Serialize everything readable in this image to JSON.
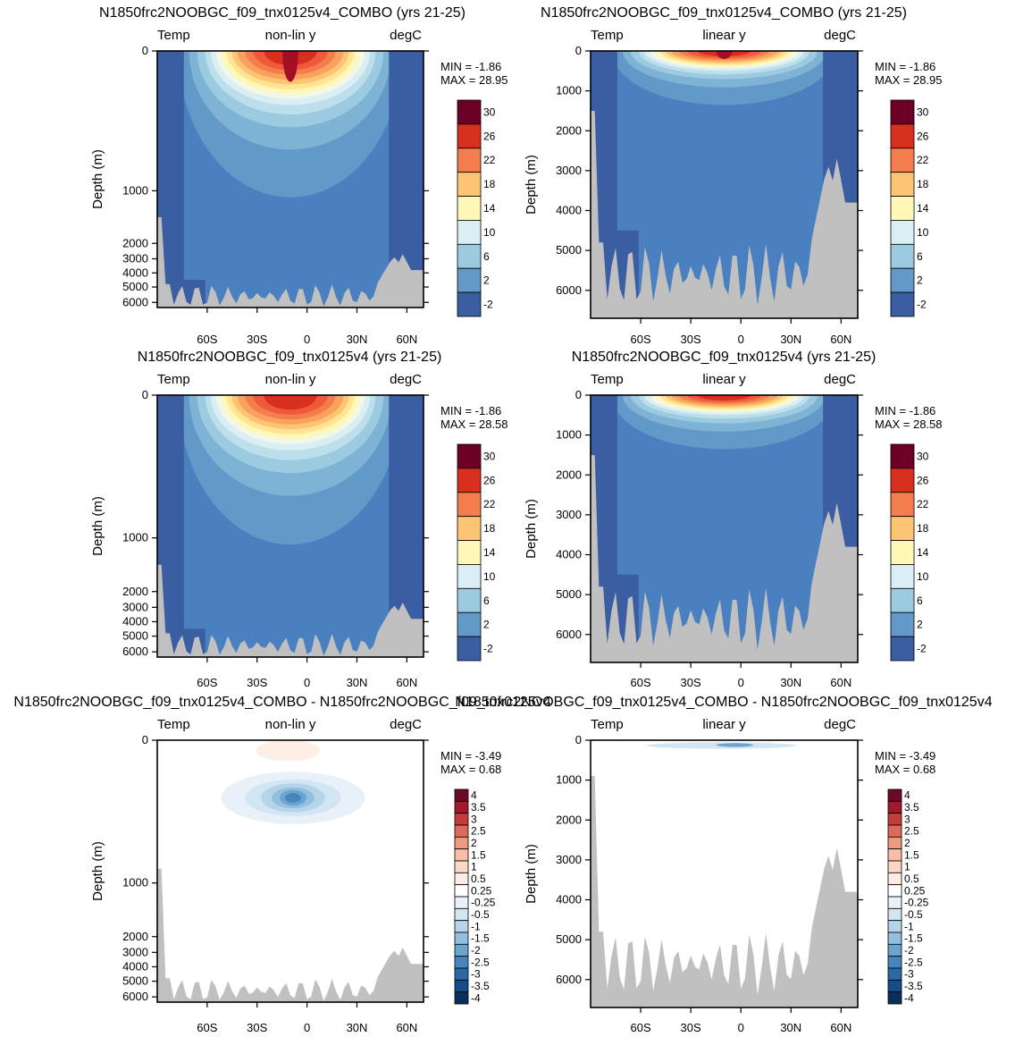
{
  "figure": {
    "panels": [
      {
        "title": "N1850frc2NOOBGC_f09_tnx0125v4_COMBO (yrs 21-25)",
        "left_label": "Temp",
        "center_label": "non-lin y",
        "right_label": "degC",
        "ylabel": "Depth (m)",
        "min_text": "MIN =  -1.86",
        "max_text": "MAX =  28.95"
      },
      {
        "title": "N1850frc2NOOBGC_f09_tnx0125v4_COMBO (yrs 21-25)",
        "left_label": "Temp",
        "center_label": "linear y",
        "right_label": "degC",
        "ylabel": "Depth (m)",
        "min_text": "MIN =  -1.86",
        "max_text": "MAX =  28.95"
      },
      {
        "title": "N1850frc2NOOBGC_f09_tnx0125v4 (yrs 21-25)",
        "left_label": "Temp",
        "center_label": "non-lin y",
        "right_label": "degC",
        "ylabel": "Depth (m)",
        "min_text": "MIN =  -1.86",
        "max_text": "MAX =  28.58"
      },
      {
        "title": "N1850frc2NOOBGC_f09_tnx0125v4 (yrs 21-25)",
        "left_label": "Temp",
        "center_label": "linear y",
        "right_label": "degC",
        "ylabel": "Depth (m)",
        "min_text": "MIN =  -1.86",
        "max_text": "MAX =  28.58"
      },
      {
        "title": "N1850frc2NOOBGC_f09_tnx0125v4_COMBO - N1850frc2NOOBGC_f09_tnx0125v4",
        "left_label": "Temp",
        "center_label": "non-lin y",
        "right_label": "degC",
        "ylabel": "Depth (m)",
        "min_text": "MIN =  -3.49",
        "max_text": "MAX =   0.68"
      },
      {
        "title": "N1850frc2NOOBGC_f09_tnx0125v4_COMBO - N1850frc2NOOBGC_f09_tnx0125v4",
        "left_label": "Temp",
        "center_label": "linear y",
        "right_label": "degC",
        "ylabel": "Depth (m)",
        "min_text": "MIN =  -3.49",
        "max_text": "MAX =   0.68"
      }
    ]
  },
  "chart_data": [
    {
      "type": "heatmap",
      "variable": "Temp",
      "units": "degC",
      "y_scale": "non-linear",
      "xlabel": "",
      "ylabel": "Depth (m)",
      "xlim": [
        -80,
        80
      ],
      "ylim": [
        6500,
        0
      ],
      "x_ticks": [
        "60S",
        "30S",
        "0",
        "30N",
        "60N"
      ],
      "y_ticks": [
        "0",
        "1000",
        "2000",
        "3000",
        "4000",
        "5000",
        "6000"
      ],
      "colorbar_levels": [
        "30",
        "26",
        "22",
        "18",
        "14",
        "10",
        "6",
        "2",
        "-2"
      ],
      "min": -1.86,
      "max": 28.95
    },
    {
      "type": "heatmap",
      "variable": "Temp",
      "units": "degC",
      "y_scale": "linear",
      "xlabel": "",
      "ylabel": "Depth (m)",
      "xlim": [
        -80,
        80
      ],
      "ylim": [
        6700,
        0
      ],
      "x_ticks": [
        "60S",
        "30S",
        "0",
        "30N",
        "60N"
      ],
      "y_ticks": [
        "0",
        "1000",
        "2000",
        "3000",
        "4000",
        "5000",
        "6000"
      ],
      "colorbar_levels": [
        "30",
        "26",
        "22",
        "18",
        "14",
        "10",
        "6",
        "2",
        "-2"
      ],
      "min": -1.86,
      "max": 28.95
    },
    {
      "type": "heatmap",
      "variable": "Temp",
      "units": "degC",
      "y_scale": "non-linear",
      "xlabel": "",
      "ylabel": "Depth (m)",
      "xlim": [
        -80,
        80
      ],
      "ylim": [
        6500,
        0
      ],
      "x_ticks": [
        "60S",
        "30S",
        "0",
        "30N",
        "60N"
      ],
      "y_ticks": [
        "0",
        "1000",
        "2000",
        "3000",
        "4000",
        "5000",
        "6000"
      ],
      "colorbar_levels": [
        "30",
        "26",
        "22",
        "18",
        "14",
        "10",
        "6",
        "2",
        "-2"
      ],
      "min": -1.86,
      "max": 28.58
    },
    {
      "type": "heatmap",
      "variable": "Temp",
      "units": "degC",
      "y_scale": "linear",
      "xlabel": "",
      "ylabel": "Depth (m)",
      "xlim": [
        -80,
        80
      ],
      "ylim": [
        6700,
        0
      ],
      "x_ticks": [
        "60S",
        "30S",
        "0",
        "30N",
        "60N"
      ],
      "y_ticks": [
        "0",
        "1000",
        "2000",
        "3000",
        "4000",
        "5000",
        "6000"
      ],
      "colorbar_levels": [
        "30",
        "26",
        "22",
        "18",
        "14",
        "10",
        "6",
        "2",
        "-2"
      ],
      "min": -1.86,
      "max": 28.58
    },
    {
      "type": "heatmap",
      "variable": "Temp",
      "units": "degC",
      "y_scale": "non-linear",
      "xlabel": "",
      "ylabel": "Depth (m)",
      "xlim": [
        -80,
        80
      ],
      "ylim": [
        6500,
        0
      ],
      "x_ticks": [
        "60S",
        "30S",
        "0",
        "30N",
        "60N"
      ],
      "y_ticks": [
        "0",
        "1000",
        "2000",
        "3000",
        "4000",
        "5000",
        "6000"
      ],
      "colorbar_levels": [
        "4",
        "3.5",
        "3",
        "2.5",
        "2",
        "1.5",
        "1",
        "0.5",
        "0.25",
        "-0.25",
        "-0.5",
        "-1",
        "-1.5",
        "-2",
        "-2.5",
        "-3",
        "-3.5",
        "-4"
      ],
      "min": -3.49,
      "max": 0.68
    },
    {
      "type": "heatmap",
      "variable": "Temp",
      "units": "degC",
      "y_scale": "linear",
      "xlabel": "",
      "ylabel": "Depth (m)",
      "xlim": [
        -80,
        80
      ],
      "ylim": [
        6700,
        0
      ],
      "x_ticks": [
        "60S",
        "30S",
        "0",
        "30N",
        "60N"
      ],
      "y_ticks": [
        "0",
        "1000",
        "2000",
        "3000",
        "4000",
        "5000",
        "6000"
      ],
      "colorbar_levels": [
        "4",
        "3.5",
        "3",
        "2.5",
        "2",
        "1.5",
        "1",
        "0.5",
        "0.25",
        "-0.25",
        "-0.5",
        "-1",
        "-1.5",
        "-2",
        "-2.5",
        "-3",
        "-3.5",
        "-4"
      ],
      "min": -3.49,
      "max": 0.68
    }
  ],
  "colors": {
    "land": "#c0c0c0",
    "temp_palette": [
      "#6d0026",
      "#a50f25",
      "#d7301f",
      "#ef5a3a",
      "#f47d4d",
      "#f9a25e",
      "#fdc474",
      "#fee493",
      "#fff7b6",
      "#f1f8e8",
      "#daeef3",
      "#bcdfeb",
      "#9ccae0",
      "#7fb3d5",
      "#6299c8",
      "#4a80bf",
      "#3b5da1",
      "#332b6e"
    ],
    "diff_palette": [
      "#6a0a24",
      "#9e1a2c",
      "#c43c3c",
      "#dd6b5a",
      "#ee9a7f",
      "#f7bda6",
      "#fbd7c7",
      "#fdece3",
      "#ffffff",
      "#e8f1f8",
      "#d2e5f2",
      "#b5d4ea",
      "#93bfdf",
      "#6ba4cf",
      "#4786bd",
      "#2a68a8",
      "#164c8a",
      "#0a2f5e"
    ]
  }
}
